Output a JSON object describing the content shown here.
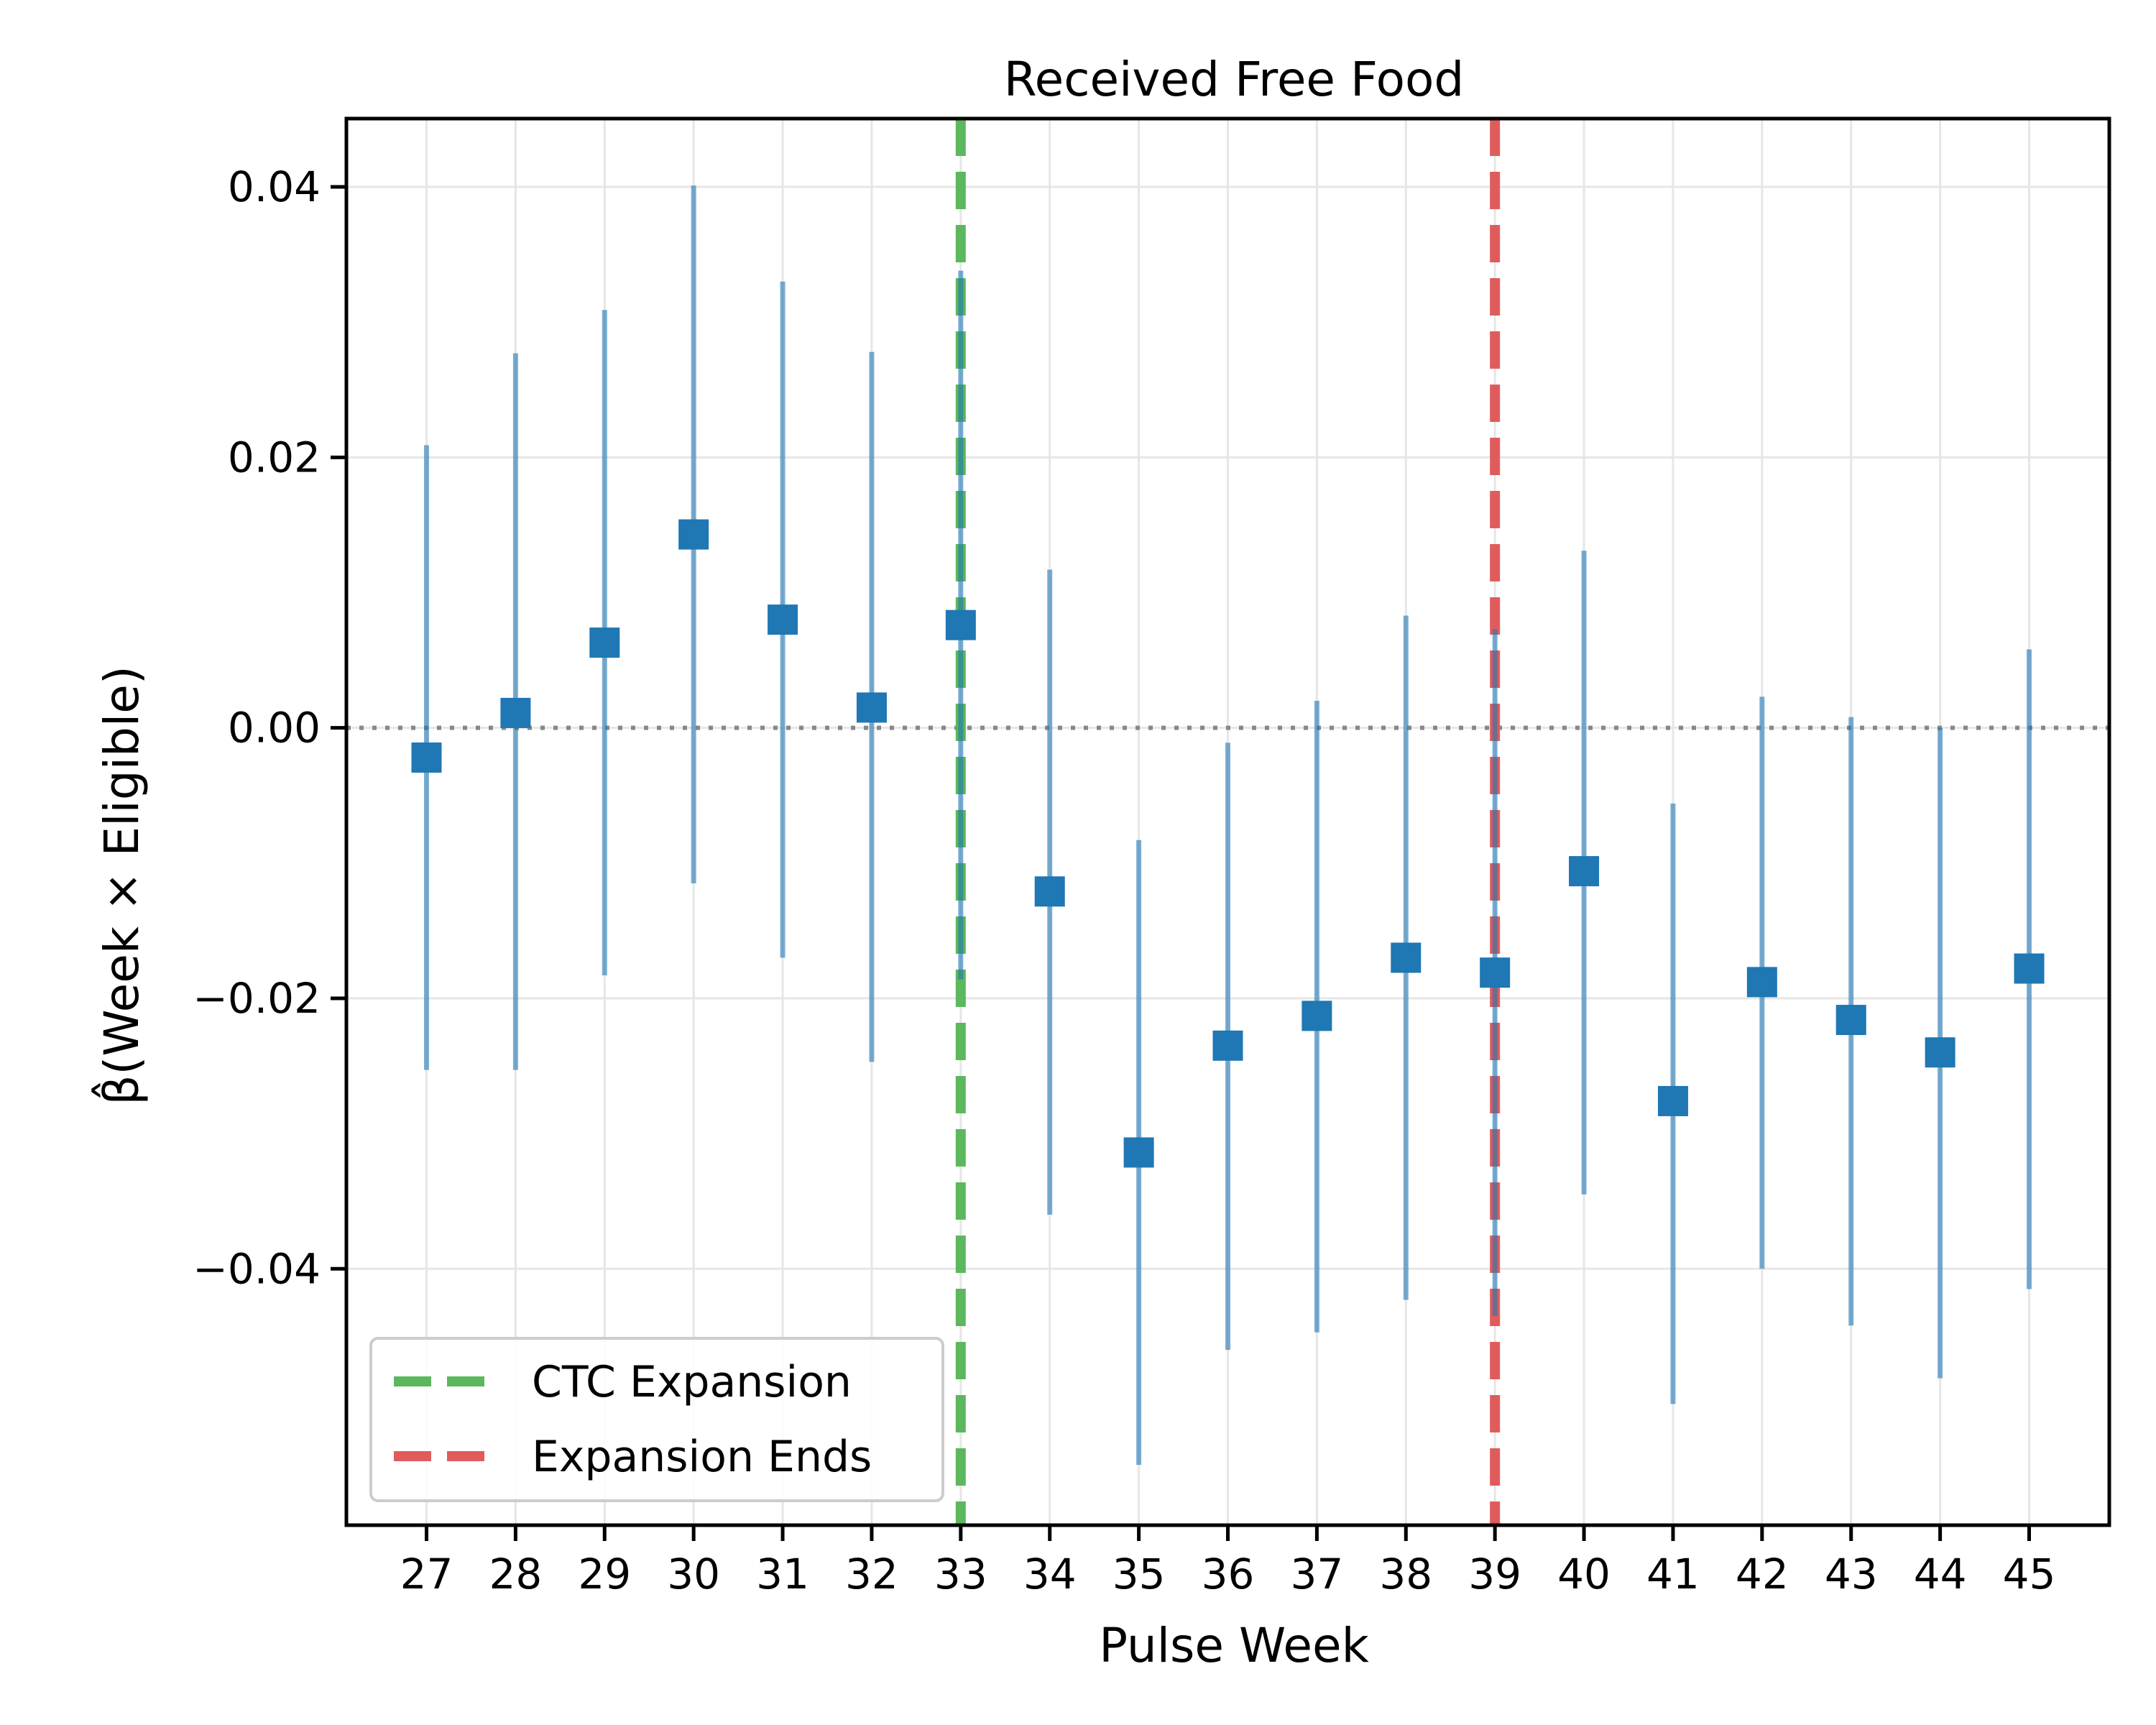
{
  "chart_data": {
    "type": "scatter",
    "title": "Received Free Food",
    "xlabel": "Pulse Week",
    "ylabel": "β̂(Week × Eligible)",
    "xlim": [
      26.1,
      45.9
    ],
    "ylim": [
      -0.05896,
      0.04505
    ],
    "grid": true,
    "legend_position": "lower-left",
    "x": [
      27,
      28,
      29,
      30,
      31,
      32,
      33,
      34,
      35,
      36,
      37,
      38,
      39,
      40,
      41,
      42,
      43,
      44,
      45
    ],
    "x_tick_labels": [
      "27",
      "28",
      "29",
      "30",
      "31",
      "32",
      "33",
      "34",
      "35",
      "36",
      "37",
      "38",
      "39",
      "40",
      "41",
      "42",
      "43",
      "44",
      "45"
    ],
    "y_ticks": [
      0.04,
      0.02,
      0.0,
      -0.02,
      -0.04
    ],
    "y_tick_labels": [
      "0.04",
      "0.02",
      "0.00",
      "−0.02",
      "−0.04"
    ],
    "series": [
      {
        "estimate": [
          -0.0022,
          0.0011,
          0.0063,
          0.0143,
          0.008,
          0.0015,
          0.0076,
          -0.0121,
          -0.0314,
          -0.0235,
          -0.0213,
          -0.017,
          -0.0181,
          -0.0106,
          -0.0276,
          -0.0188,
          -0.0216,
          -0.024,
          -0.0178
        ],
        "ci_low": [
          -0.0253,
          -0.0253,
          -0.0183,
          -0.0115,
          -0.017,
          -0.0247,
          -0.0186,
          -0.036,
          -0.0545,
          -0.046,
          -0.0447,
          -0.0423,
          -0.0435,
          -0.0345,
          -0.05,
          -0.04,
          -0.0442,
          -0.0481,
          -0.0415
        ],
        "ci_high": [
          0.0209,
          0.0277,
          0.0309,
          0.0401,
          0.033,
          0.0278,
          0.0338,
          0.0117,
          -0.0083,
          -0.0011,
          0.002,
          0.0083,
          0.0073,
          0.0131,
          -0.0056,
          0.0023,
          0.0008,
          0.0,
          0.0058
        ],
        "color": "#1f77b4"
      }
    ],
    "reference_lines": [
      {
        "type": "horizontal",
        "y": 0.0,
        "style": "dotted",
        "color": "#888888"
      },
      {
        "type": "vertical",
        "x": 33,
        "style": "dashed",
        "color": "#5cb85c",
        "label": "CTC Expansion"
      },
      {
        "type": "vertical",
        "x": 39,
        "style": "dashed",
        "color": "#e05c5c",
        "label": "Expansion Ends"
      }
    ]
  }
}
